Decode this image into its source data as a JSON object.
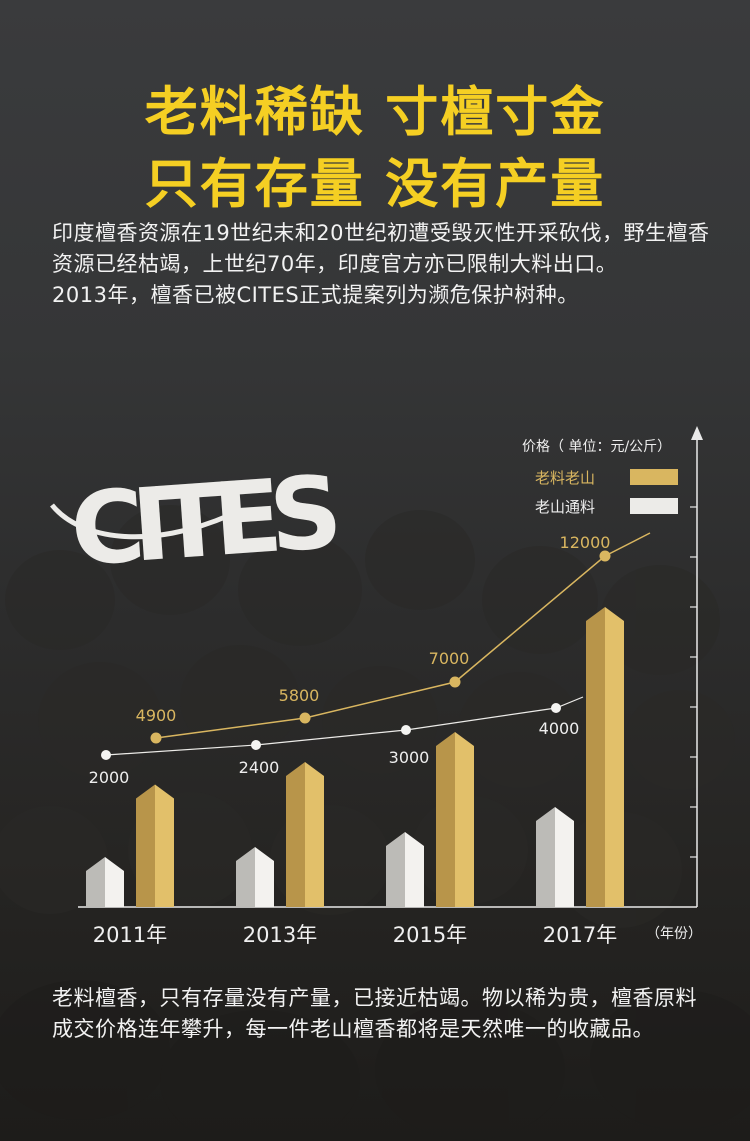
{
  "headline": {
    "line1": "老料稀缺 寸檀寸金",
    "line2": "只有存量 没有产量"
  },
  "intro": {
    "p1": "印度檀香资源在19世纪末和20世纪初遭受毁灭性开采砍伐，野生檀香资源已经枯竭，上世纪70年，印度官方亦已限制大料出口。",
    "p2": "2013年，檀香已被CITES正式提案列为濒危保护树种。"
  },
  "logo": {
    "text": "CITES",
    "icon": "cites-elephant-logo"
  },
  "chart_data": {
    "type": "bar",
    "categories": [
      "2011年",
      "2013年",
      "2015年",
      "2017年"
    ],
    "x_axis_suffix": "（年份）",
    "ylabel": "价格（ 单位：元/公斤）",
    "series": [
      {
        "name": "老料老山",
        "color": "#d9b660",
        "values": [
          4900,
          5800,
          7000,
          12000
        ]
      },
      {
        "name": "老山通料",
        "color": "#ecebe8",
        "values": [
          2000,
          2400,
          3000,
          4000
        ]
      }
    ],
    "legend_position": "top-right",
    "grid": false
  },
  "colors": {
    "accent": "#f5cf23",
    "gold": "#d9b660",
    "gold_dark": "#b8954a",
    "silver": "#ecebe8",
    "silver_dark": "#b9b8b5"
  },
  "outro": {
    "p1": "老料檀香，只有存量没有产量，已接近枯竭。物以稀为贵，檀香原料成交价格连年攀升，每一件老山檀香都将是天然唯一的收藏品。"
  }
}
